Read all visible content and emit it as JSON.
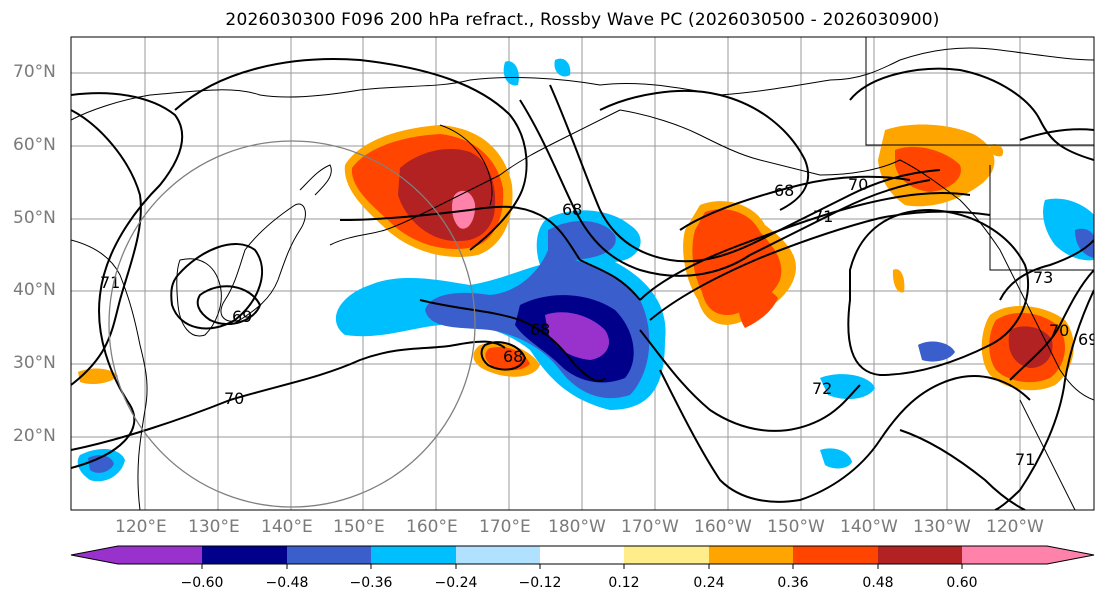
{
  "title": "2026030300 F096 200 hPa refract., Rossby Wave PC (2026030500 - 2026030900)",
  "lat_labels": [
    "70°N",
    "60°N",
    "50°N",
    "40°N",
    "30°N",
    "20°N"
  ],
  "lon_labels": [
    "120°E",
    "130°E",
    "140°E",
    "150°E",
    "160°E",
    "170°E",
    "180°W",
    "170°W",
    "160°W",
    "150°W",
    "140°W",
    "130°W",
    "120°W"
  ],
  "contour_labels": [
    "71",
    "69",
    "70",
    "68",
    "68",
    "68",
    "68",
    "70",
    "71",
    "72",
    "73",
    "70",
    "69",
    "71"
  ],
  "colorbar": {
    "ticks": [
      "−0.60",
      "−0.48",
      "−0.36",
      "−0.24",
      "−0.12",
      "0.12",
      "0.24",
      "0.36",
      "0.48",
      "0.60"
    ],
    "colors": [
      "#9932CC",
      "#00008B",
      "#3A5FCD",
      "#00BFFF",
      "#B0E2FF",
      "#FFFFFF",
      "#FFEC8B",
      "#FFA500",
      "#FF4500",
      "#B22222",
      "#FF82AB"
    ]
  }
}
